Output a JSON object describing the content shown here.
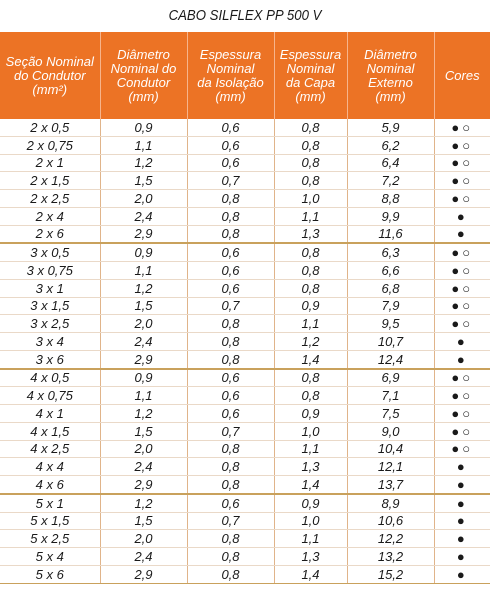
{
  "title": "CABO SILFLEX PP 500 V",
  "headers": [
    [
      "Seção Nominal",
      "do Condutor",
      "(mm²)"
    ],
    [
      "Diâmetro",
      "Nominal do",
      "Condutor",
      "(mm)"
    ],
    [
      "Espessura",
      "Nominal",
      "da Isolação",
      "(mm)"
    ],
    [
      "Espessura",
      "Nominal",
      "da Capa",
      "(mm)"
    ],
    [
      "Diâmetro",
      "Nominal",
      "Externo",
      "(mm)"
    ],
    [
      "Cores"
    ]
  ],
  "rows": [
    {
      "secao": "2 x 0,5",
      "diam_cond": "0,9",
      "esp_iso": "0,6",
      "esp_capa": "0,8",
      "diam_ext": "5,9",
      "cores": "●○"
    },
    {
      "secao": "2 x 0,75",
      "diam_cond": "1,1",
      "esp_iso": "0,6",
      "esp_capa": "0,8",
      "diam_ext": "6,2",
      "cores": "●○"
    },
    {
      "secao": "2 x 1",
      "diam_cond": "1,2",
      "esp_iso": "0,6",
      "esp_capa": "0,8",
      "diam_ext": "6,4",
      "cores": "●○"
    },
    {
      "secao": "2 x 1,5",
      "diam_cond": "1,5",
      "esp_iso": "0,7",
      "esp_capa": "0,8",
      "diam_ext": "7,2",
      "cores": "●○"
    },
    {
      "secao": "2 x 2,5",
      "diam_cond": "2,0",
      "esp_iso": "0,8",
      "esp_capa": "1,0",
      "diam_ext": "8,8",
      "cores": "●○"
    },
    {
      "secao": "2 x 4",
      "diam_cond": "2,4",
      "esp_iso": "0,8",
      "esp_capa": "1,1",
      "diam_ext": "9,9",
      "cores": "●"
    },
    {
      "secao": "2 x 6",
      "diam_cond": "2,9",
      "esp_iso": "0,8",
      "esp_capa": "1,3",
      "diam_ext": "11,6",
      "cores": "●"
    },
    {
      "secao": "3 x 0,5",
      "diam_cond": "0,9",
      "esp_iso": "0,6",
      "esp_capa": "0,8",
      "diam_ext": "6,3",
      "cores": "●○"
    },
    {
      "secao": "3 x 0,75",
      "diam_cond": "1,1",
      "esp_iso": "0,6",
      "esp_capa": "0,8",
      "diam_ext": "6,6",
      "cores": "●○"
    },
    {
      "secao": "3 x 1",
      "diam_cond": "1,2",
      "esp_iso": "0,6",
      "esp_capa": "0,8",
      "diam_ext": "6,8",
      "cores": "●○"
    },
    {
      "secao": "3 x 1,5",
      "diam_cond": "1,5",
      "esp_iso": "0,7",
      "esp_capa": "0,9",
      "diam_ext": "7,9",
      "cores": "●○"
    },
    {
      "secao": "3 x 2,5",
      "diam_cond": "2,0",
      "esp_iso": "0,8",
      "esp_capa": "1,1",
      "diam_ext": "9,5",
      "cores": "●○"
    },
    {
      "secao": "3 x 4",
      "diam_cond": "2,4",
      "esp_iso": "0,8",
      "esp_capa": "1,2",
      "diam_ext": "10,7",
      "cores": "●"
    },
    {
      "secao": "3 x 6",
      "diam_cond": "2,9",
      "esp_iso": "0,8",
      "esp_capa": "1,4",
      "diam_ext": "12,4",
      "cores": "●"
    },
    {
      "secao": "4 x 0,5",
      "diam_cond": "0,9",
      "esp_iso": "0,6",
      "esp_capa": "0,8",
      "diam_ext": "6,9",
      "cores": "●○"
    },
    {
      "secao": "4 x 0,75",
      "diam_cond": "1,1",
      "esp_iso": "0,6",
      "esp_capa": "0,8",
      "diam_ext": "7,1",
      "cores": "●○"
    },
    {
      "secao": "4 x 1",
      "diam_cond": "1,2",
      "esp_iso": "0,6",
      "esp_capa": "0,9",
      "diam_ext": "7,5",
      "cores": "●○"
    },
    {
      "secao": "4 x 1,5",
      "diam_cond": "1,5",
      "esp_iso": "0,7",
      "esp_capa": "1,0",
      "diam_ext": "9,0",
      "cores": "●○"
    },
    {
      "secao": "4 x 2,5",
      "diam_cond": "2,0",
      "esp_iso": "0,8",
      "esp_capa": "1,1",
      "diam_ext": "10,4",
      "cores": "●○"
    },
    {
      "secao": "4 x 4",
      "diam_cond": "2,4",
      "esp_iso": "0,8",
      "esp_capa": "1,3",
      "diam_ext": "12,1",
      "cores": "●"
    },
    {
      "secao": "4 x 6",
      "diam_cond": "2,9",
      "esp_iso": "0,8",
      "esp_capa": "1,4",
      "diam_ext": "13,7",
      "cores": "●"
    },
    {
      "secao": "5 x 1",
      "diam_cond": "1,2",
      "esp_iso": "0,6",
      "esp_capa": "0,9",
      "diam_ext": "8,9",
      "cores": "●"
    },
    {
      "secao": "5 x 1,5",
      "diam_cond": "1,5",
      "esp_iso": "0,7",
      "esp_capa": "1,0",
      "diam_ext": "10,6",
      "cores": "●"
    },
    {
      "secao": "5 x 2,5",
      "diam_cond": "2,0",
      "esp_iso": "0,8",
      "esp_capa": "1,1",
      "diam_ext": "12,2",
      "cores": "●"
    },
    {
      "secao": "5 x 4",
      "diam_cond": "2,4",
      "esp_iso": "0,8",
      "esp_capa": "1,3",
      "diam_ext": "13,2",
      "cores": "●"
    },
    {
      "secao": "5 x 6",
      "diam_cond": "2,9",
      "esp_iso": "0,8",
      "esp_capa": "1,4",
      "diam_ext": "15,2",
      "cores": "●"
    }
  ],
  "colors": {
    "header_bg": "#ec7325",
    "header_text": "#ffffff",
    "group_divider": "#c9a15c"
  }
}
